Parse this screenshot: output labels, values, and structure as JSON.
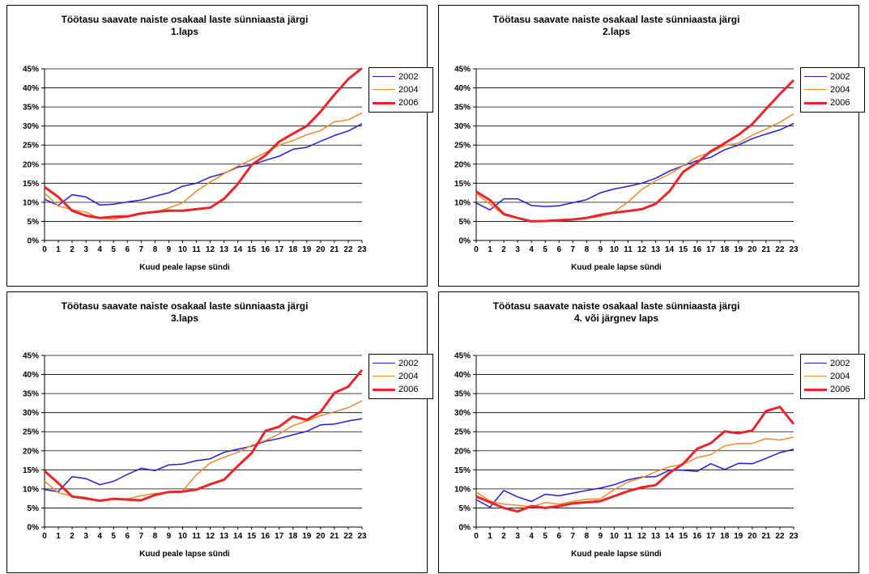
{
  "chart_data": [
    {
      "type": "line",
      "title_line1": "Töötasu saavate naiste osakaal laste sünniaasta järgi",
      "title_line2": "1.laps",
      "xlabel": "Kuud peale lapse sündi",
      "ylabel": "",
      "ylim": [
        0,
        45
      ],
      "yticks": [
        "0%",
        "5%",
        "10%",
        "15%",
        "20%",
        "25%",
        "30%",
        "35%",
        "40%",
        "45%"
      ],
      "grid": true,
      "legend_position": "right",
      "x": [
        0,
        1,
        2,
        3,
        4,
        5,
        6,
        7,
        8,
        9,
        10,
        11,
        12,
        13,
        14,
        15,
        16,
        17,
        18,
        19,
        20,
        21,
        22,
        23
      ],
      "series": [
        {
          "name": "2002",
          "color": "#1f1fd8",
          "width": 1.5,
          "values": [
            10.8,
            9.2,
            12.0,
            11.4,
            9.3,
            9.5,
            10.1,
            10.6,
            11.6,
            12.5,
            14.2,
            15.0,
            16.6,
            17.6,
            19.2,
            19.8,
            21.0,
            22.1,
            23.9,
            24.4,
            26.0,
            27.5,
            28.7,
            30.6
          ]
        },
        {
          "name": "2004",
          "color": "#f0892a",
          "width": 1.5,
          "values": [
            12.4,
            9.0,
            8.1,
            7.4,
            5.8,
            5.6,
            6.2,
            7.0,
            7.4,
            8.5,
            9.9,
            12.9,
            15.3,
            17.5,
            19.5,
            21.2,
            23.0,
            25.0,
            26.2,
            27.7,
            28.8,
            31.1,
            31.6,
            33.4
          ]
        },
        {
          "name": "2006",
          "color": "#e8262a",
          "width": 3,
          "values": [
            14.0,
            11.4,
            7.8,
            6.5,
            5.9,
            6.2,
            6.3,
            7.1,
            7.5,
            7.8,
            7.8,
            8.2,
            8.6,
            10.9,
            14.8,
            19.8,
            22.3,
            25.9,
            28.0,
            30.0,
            33.8,
            38.2,
            42.3,
            45.2
          ]
        }
      ]
    },
    {
      "type": "line",
      "title_line1": "Töötasu saavate naiste osakaal laste sünniaasta järgi",
      "title_line2": "2.laps",
      "xlabel": "Kuud peale lapse sündi",
      "ylabel": "",
      "ylim": [
        0,
        45
      ],
      "yticks": [
        "0%",
        "5%",
        "10%",
        "15%",
        "20%",
        "25%",
        "30%",
        "35%",
        "40%",
        "45%"
      ],
      "grid": true,
      "legend_position": "right",
      "x": [
        0,
        1,
        2,
        3,
        4,
        5,
        6,
        7,
        8,
        9,
        10,
        11,
        12,
        13,
        14,
        15,
        16,
        17,
        18,
        19,
        20,
        21,
        22,
        23
      ],
      "series": [
        {
          "name": "2002",
          "color": "#1f1fd8",
          "width": 1.5,
          "values": [
            9.8,
            8.0,
            10.9,
            10.9,
            9.2,
            8.9,
            9.1,
            9.9,
            10.7,
            12.5,
            13.5,
            14.2,
            15.0,
            16.3,
            18.2,
            19.6,
            20.9,
            21.8,
            23.8,
            25.0,
            26.7,
            27.9,
            29.0,
            30.7
          ]
        },
        {
          "name": "2004",
          "color": "#f0892a",
          "width": 1.5,
          "values": [
            12.3,
            9.5,
            6.7,
            5.8,
            4.9,
            5.0,
            5.2,
            5.5,
            5.8,
            6.3,
            7.5,
            10.1,
            13.4,
            15.6,
            17.4,
            19.6,
            21.9,
            23.1,
            24.9,
            25.5,
            27.6,
            29.2,
            31.0,
            33.2
          ]
        },
        {
          "name": "2006",
          "color": "#e8262a",
          "width": 3,
          "values": [
            12.8,
            10.6,
            6.9,
            5.9,
            5.0,
            5.1,
            5.3,
            5.5,
            5.9,
            6.7,
            7.3,
            7.7,
            8.2,
            9.6,
            12.9,
            18.0,
            20.4,
            23.4,
            25.5,
            27.7,
            30.5,
            34.5,
            38.4,
            42.0
          ]
        }
      ]
    },
    {
      "type": "line",
      "title_line1": "Töötasu saavate naiste osakaal laste sünniaasta järgi",
      "title_line2": "3.laps",
      "xlabel": "Kuud peale lapse sündi",
      "ylabel": "",
      "ylim": [
        0,
        45
      ],
      "yticks": [
        "0%",
        "5%",
        "10%",
        "15%",
        "20%",
        "25%",
        "30%",
        "35%",
        "40%",
        "45%"
      ],
      "grid": true,
      "legend_position": "right",
      "x": [
        0,
        1,
        2,
        3,
        4,
        5,
        6,
        7,
        8,
        9,
        10,
        11,
        12,
        13,
        14,
        15,
        16,
        17,
        18,
        19,
        20,
        21,
        22,
        23
      ],
      "series": [
        {
          "name": "2002",
          "color": "#1f1fd8",
          "width": 1.5,
          "values": [
            9.8,
            9.3,
            13.2,
            12.7,
            11.1,
            12.0,
            13.8,
            15.4,
            14.8,
            16.3,
            16.5,
            17.4,
            17.9,
            19.6,
            20.4,
            21.2,
            22.5,
            23.2,
            24.2,
            25.1,
            26.8,
            27.0,
            27.8,
            28.4
          ]
        },
        {
          "name": "2004",
          "color": "#f0892a",
          "width": 1.5,
          "values": [
            12.0,
            9.0,
            8.1,
            7.8,
            6.8,
            7.5,
            7.4,
            8.2,
            8.8,
            9.1,
            9.4,
            13.7,
            16.8,
            18.3,
            19.6,
            21.4,
            22.7,
            24.4,
            26.6,
            27.8,
            29.2,
            30.2,
            31.3,
            33.1
          ]
        },
        {
          "name": "2006",
          "color": "#e8262a",
          "width": 3,
          "values": [
            14.7,
            11.5,
            8.0,
            7.5,
            6.9,
            7.4,
            7.2,
            7.0,
            8.4,
            9.2,
            9.3,
            9.8,
            11.2,
            12.4,
            16.0,
            19.4,
            25.2,
            26.3,
            29.0,
            28.1,
            30.2,
            35.2,
            36.8,
            41.2
          ]
        }
      ]
    },
    {
      "type": "line",
      "title_line1": "Töötasu saavate naiste osakaal laste sünniaasta järgi",
      "title_line2": "4. või järgnev laps",
      "xlabel": "Kuud peale lapse sündi",
      "ylabel": "",
      "ylim": [
        0,
        45
      ],
      "yticks": [
        "0%",
        "5%",
        "10%",
        "15%",
        "20%",
        "25%",
        "30%",
        "35%",
        "40%",
        "45%"
      ],
      "grid": true,
      "legend_position": "right",
      "x": [
        0,
        1,
        2,
        3,
        4,
        5,
        6,
        7,
        8,
        9,
        10,
        11,
        12,
        13,
        14,
        15,
        16,
        17,
        18,
        19,
        20,
        21,
        22,
        23
      ],
      "series": [
        {
          "name": "2002",
          "color": "#1f1fd8",
          "width": 1.5,
          "values": [
            7.2,
            5.2,
            9.6,
            7.9,
            6.7,
            8.6,
            8.2,
            8.9,
            9.6,
            10.2,
            11.1,
            12.4,
            13.1,
            13.2,
            14.9,
            14.9,
            14.6,
            16.6,
            15.1,
            16.7,
            16.6,
            18.0,
            19.5,
            20.4
          ]
        },
        {
          "name": "2004",
          "color": "#f0892a",
          "width": 1.5,
          "values": [
            9.2,
            6.8,
            6.0,
            5.7,
            5.3,
            6.4,
            6.0,
            6.7,
            7.3,
            7.4,
            9.8,
            11.8,
            12.9,
            14.5,
            15.8,
            16.5,
            18.2,
            19.0,
            21.3,
            21.9,
            21.9,
            23.2,
            22.8,
            23.6
          ]
        },
        {
          "name": "2006",
          "color": "#e8262a",
          "width": 3,
          "values": [
            8.0,
            6.5,
            5.0,
            4.1,
            5.5,
            5.0,
            5.5,
            6.2,
            6.5,
            6.8,
            8.1,
            9.4,
            10.4,
            11.0,
            14.2,
            16.6,
            20.5,
            22.0,
            25.1,
            24.6,
            25.3,
            30.4,
            31.5,
            27.0
          ]
        }
      ]
    }
  ]
}
